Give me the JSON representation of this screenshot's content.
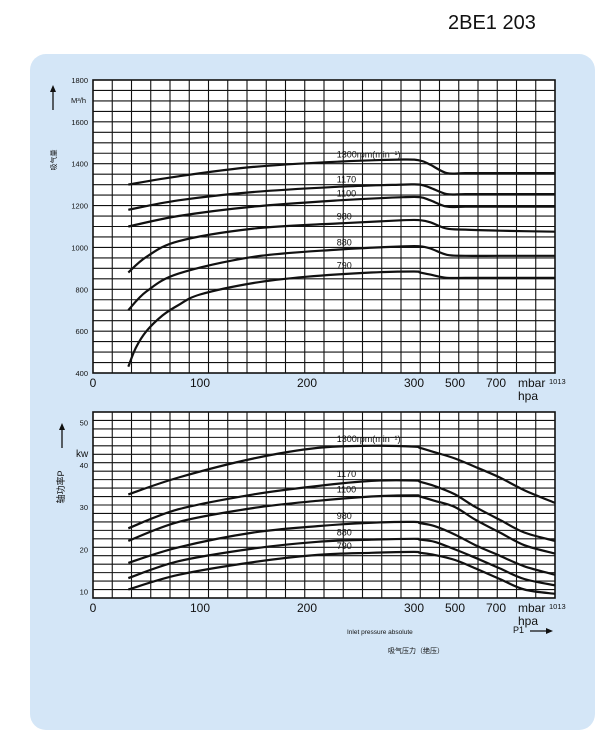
{
  "model": "2BE1 203",
  "colors": {
    "panel": "#d4e6f7",
    "grid_bg": "#ffffff",
    "grid": "#111111",
    "curve": "#111111"
  },
  "chart_data": [
    {
      "type": "line",
      "ylabel_cn": "吸气量",
      "unit": "M³/h",
      "xlabel": "mbar",
      "xlabel2": "hpa",
      "x_end_label": "1013",
      "x_ticks": [
        "0",
        "100",
        "200",
        "300",
        "500",
        "700"
      ],
      "y_ticks": [
        "400",
        "600",
        "800",
        "1000",
        "1200",
        "1400",
        "1600",
        "1800"
      ],
      "ylim": [
        400,
        1800
      ],
      "series": [
        {
          "name": "1300rpm(min⁻¹)",
          "x": [
            33,
            80,
            150,
            230,
            290,
            330,
            380,
            460,
            550,
            720,
            1013
          ],
          "y": [
            1300,
            1340,
            1385,
            1410,
            1420,
            1415,
            1395,
            1355,
            1355,
            1355,
            1355
          ]
        },
        {
          "name": "1170",
          "x": [
            33,
            80,
            150,
            230,
            290,
            330,
            380,
            460,
            550,
            720,
            1013
          ],
          "y": [
            1180,
            1225,
            1265,
            1290,
            1300,
            1300,
            1285,
            1255,
            1255,
            1255,
            1255
          ]
        },
        {
          "name": "1100",
          "x": [
            33,
            80,
            150,
            230,
            290,
            330,
            380,
            460,
            550,
            720,
            1013
          ],
          "y": [
            1100,
            1150,
            1195,
            1225,
            1240,
            1240,
            1225,
            1195,
            1195,
            1195,
            1195
          ]
        },
        {
          "name": "980",
          "x": [
            33,
            50,
            80,
            150,
            230,
            290,
            330,
            380,
            460,
            550,
            720,
            1013
          ],
          "y": [
            880,
            955,
            1030,
            1090,
            1115,
            1130,
            1130,
            1120,
            1090,
            1085,
            1080,
            1075
          ]
        },
        {
          "name": "880",
          "x": [
            33,
            50,
            80,
            150,
            230,
            290,
            330,
            380,
            460,
            550,
            720,
            1013
          ],
          "y": [
            700,
            790,
            875,
            955,
            990,
            1005,
            1005,
            995,
            965,
            960,
            960,
            960
          ]
        },
        {
          "name": "790",
          "x": [
            33,
            40,
            50,
            65,
            80,
            100,
            150,
            200,
            260,
            300,
            330,
            380,
            460,
            550,
            720,
            1013
          ],
          "y": [
            430,
            520,
            600,
            675,
            725,
            775,
            830,
            860,
            880,
            885,
            880,
            870,
            855,
            855,
            855,
            855
          ]
        }
      ]
    },
    {
      "type": "line",
      "ylabel_cn": "轴功率P",
      "unit": "kw",
      "xlabel": "mbar",
      "xlabel2": "hpa",
      "x_end_label": "1013",
      "x_ticks": [
        "0",
        "100",
        "200",
        "300",
        "500",
        "700"
      ],
      "y_ticks": [
        "10",
        "20",
        "30",
        "40",
        "50"
      ],
      "ylim": [
        8.5,
        52.5
      ],
      "annotation_en": "Inlet pressure absolute",
      "annotation_cn": "吸气压力（绝压）",
      "p1_label": "P1",
      "series": [
        {
          "name": "1300rpm(min⁻¹)",
          "x": [
            33,
            80,
            150,
            210,
            260,
            300,
            330,
            400,
            500,
            600,
            720,
            850,
            1013
          ],
          "y": [
            33,
            37,
            41.5,
            44,
            44.5,
            44.3,
            44,
            43,
            41.5,
            39.5,
            37,
            34,
            31
          ]
        },
        {
          "name": "1170",
          "x": [
            33,
            80,
            150,
            210,
            260,
            300,
            330,
            400,
            500,
            600,
            720,
            850,
            1013
          ],
          "y": [
            25,
            29.5,
            33,
            35,
            36.2,
            36.3,
            36,
            35,
            33,
            30,
            27,
            24,
            22
          ]
        },
        {
          "name": "1100",
          "x": [
            33,
            80,
            150,
            210,
            260,
            300,
            330,
            400,
            500,
            600,
            720,
            850,
            1013
          ],
          "y": [
            22,
            26.5,
            29.8,
            31.5,
            32.5,
            32.8,
            32.5,
            31.5,
            30,
            27,
            24,
            21,
            19
          ]
        },
        {
          "name": "980",
          "x": [
            33,
            80,
            150,
            210,
            260,
            300,
            330,
            400,
            500,
            600,
            720,
            850,
            1013
          ],
          "y": [
            16.8,
            20.5,
            24,
            25.5,
            26.3,
            26.5,
            26.2,
            25.5,
            23.5,
            21,
            18.5,
            16,
            14
          ]
        },
        {
          "name": "880",
          "x": [
            33,
            80,
            150,
            210,
            260,
            300,
            330,
            400,
            500,
            600,
            720,
            850,
            1013
          ],
          "y": [
            13.2,
            17.2,
            20.2,
            21.8,
            22.3,
            22.5,
            22.3,
            21.8,
            20,
            18,
            15.5,
            13,
            11.5
          ]
        },
        {
          "name": "790",
          "x": [
            33,
            80,
            150,
            210,
            260,
            300,
            330,
            400,
            500,
            600,
            720,
            850,
            1013
          ],
          "y": [
            10.5,
            14,
            17,
            18.7,
            19.2,
            19.4,
            19.2,
            18.7,
            17.5,
            15.5,
            13,
            10.5,
            9.5
          ]
        }
      ]
    }
  ]
}
